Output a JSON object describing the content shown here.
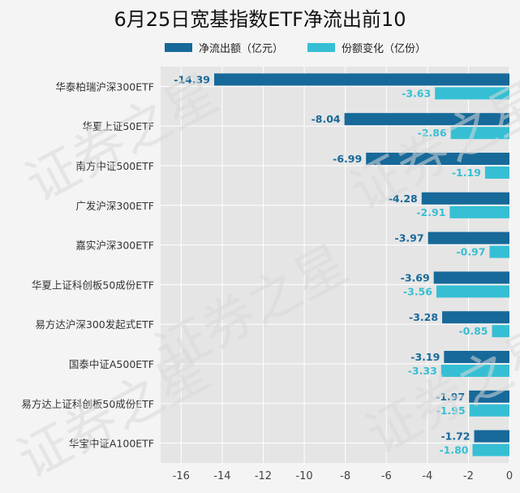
{
  "title": "6月25日宽基指数ETF净流出前10",
  "watermark": "证券之星",
  "colors": {
    "background": "#f4f4f4",
    "plot_bg": "#e5e5e5",
    "grid": "#ffffff",
    "series1": "#17699a",
    "series2": "#36bfd4"
  },
  "chart_data": {
    "type": "bar",
    "orientation": "horizontal",
    "title": "6月25日宽基指数ETF净流出前10",
    "categories": [
      "华泰柏瑞沪深300ETF",
      "华夏上证50ETF",
      "南方中证500ETF",
      "广发沪深300ETF",
      "嘉实沪深300ETF",
      "华夏上证科创板50成份ETF",
      "易方达沪深300发起式ETF",
      "国泰中证A500ETF",
      "易方达上证科创板50成份ETF",
      "华宝中证A100ETF"
    ],
    "series": [
      {
        "name": "净流出额（亿元）",
        "values": [
          -14.39,
          -8.04,
          -6.99,
          -4.28,
          -3.97,
          -3.69,
          -3.28,
          -3.19,
          -1.97,
          -1.72
        ]
      },
      {
        "name": "份额变化（亿份）",
        "values": [
          -3.63,
          -2.86,
          -1.19,
          -2.91,
          -0.97,
          -3.56,
          -0.85,
          -3.33,
          -1.95,
          -1.8
        ]
      }
    ],
    "value_labels": [
      [
        "-14.39",
        "-8.04",
        "-6.99",
        "-4.28",
        "-3.97",
        "-3.69",
        "-3.28",
        "-3.19",
        "-1.97",
        "-1.72"
      ],
      [
        "-3.63",
        "-2.86",
        "-1.19",
        "-2.91",
        "-0.97",
        "-3.56",
        "-0.85",
        "-3.33",
        "-1.95",
        "-1.80"
      ]
    ],
    "xlim": [
      -17,
      0
    ],
    "xticks": [
      -16,
      -14,
      -12,
      -10,
      -8,
      -6,
      -4,
      -2,
      0
    ],
    "xtick_labels": [
      "-16",
      "-14",
      "-12",
      "-10",
      "-8",
      "-6",
      "-4",
      "-2",
      "0"
    ],
    "legend_position": "top",
    "grid": true
  }
}
